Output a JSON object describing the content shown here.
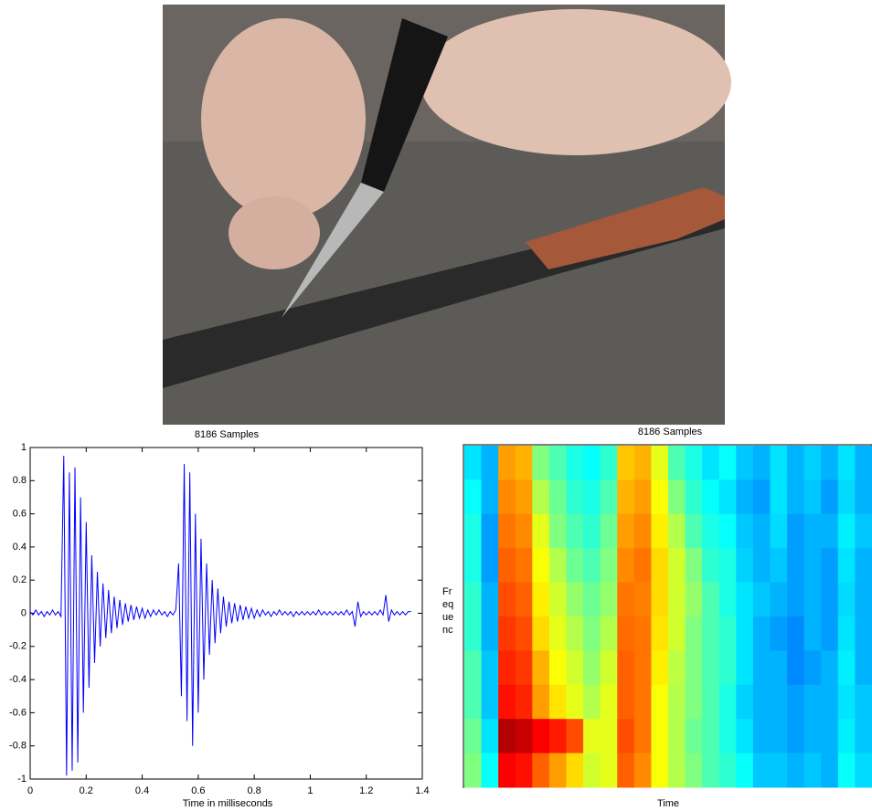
{
  "chart_data": [
    {
      "type": "line",
      "title": "8186 Samples",
      "xlabel": "Time in milliseconds",
      "xlim": [
        0,
        1.4
      ],
      "ylim": [
        -1,
        1
      ],
      "xticks": [
        0,
        0.2,
        0.4,
        0.6,
        0.8,
        1,
        1.2,
        1.4
      ],
      "yticks": [
        -1,
        -0.8,
        -0.6,
        -0.4,
        -0.2,
        0,
        0.2,
        0.4,
        0.6,
        0.8,
        1
      ],
      "color": "#0000ff",
      "x": [
        0,
        0.01,
        0.02,
        0.03,
        0.04,
        0.05,
        0.06,
        0.07,
        0.08,
        0.09,
        0.1,
        0.11,
        0.12,
        0.13,
        0.14,
        0.15,
        0.16,
        0.17,
        0.18,
        0.19,
        0.2,
        0.21,
        0.22,
        0.23,
        0.24,
        0.25,
        0.26,
        0.27,
        0.28,
        0.29,
        0.3,
        0.31,
        0.32,
        0.33,
        0.34,
        0.35,
        0.36,
        0.37,
        0.38,
        0.39,
        0.4,
        0.41,
        0.42,
        0.43,
        0.44,
        0.45,
        0.46,
        0.47,
        0.48,
        0.49,
        0.5,
        0.51,
        0.52,
        0.53,
        0.54,
        0.55,
        0.56,
        0.57,
        0.58,
        0.59,
        0.6,
        0.61,
        0.62,
        0.63,
        0.64,
        0.65,
        0.66,
        0.67,
        0.68,
        0.69,
        0.7,
        0.71,
        0.72,
        0.73,
        0.74,
        0.75,
        0.76,
        0.77,
        0.78,
        0.79,
        0.8,
        0.81,
        0.82,
        0.83,
        0.84,
        0.85,
        0.86,
        0.87,
        0.88,
        0.89,
        0.9,
        0.91,
        0.92,
        0.93,
        0.94,
        0.95,
        0.96,
        0.97,
        0.98,
        0.99,
        1,
        1.01,
        1.02,
        1.03,
        1.04,
        1.05,
        1.06,
        1.07,
        1.08,
        1.09,
        1.1,
        1.11,
        1.12,
        1.13,
        1.14,
        1.15,
        1.16,
        1.17,
        1.18,
        1.19,
        1.2,
        1.21,
        1.22,
        1.23,
        1.24,
        1.25,
        1.26,
        1.27,
        1.28,
        1.29,
        1.3,
        1.31,
        1.32,
        1.33,
        1.34,
        1.35,
        1.36
      ],
      "values": [
        0.01,
        -0.01,
        0.02,
        -0.01,
        0.01,
        -0.02,
        0.01,
        -0.01,
        0.02,
        -0.01,
        0.01,
        -0.02,
        0.95,
        -0.98,
        0.85,
        -0.95,
        0.88,
        -0.9,
        0.7,
        -0.6,
        0.55,
        -0.45,
        0.35,
        -0.3,
        0.25,
        -0.2,
        0.18,
        -0.15,
        0.14,
        -0.12,
        0.1,
        -0.09,
        0.08,
        -0.07,
        0.06,
        -0.05,
        0.05,
        -0.04,
        0.04,
        -0.03,
        0.03,
        -0.03,
        0.02,
        -0.02,
        0.02,
        -0.01,
        0.02,
        -0.01,
        0.01,
        -0.02,
        0.01,
        -0.01,
        0.02,
        0.3,
        -0.5,
        0.9,
        -0.65,
        0.85,
        -0.8,
        0.6,
        -0.6,
        0.45,
        -0.4,
        0.3,
        -0.25,
        0.2,
        -0.18,
        0.15,
        -0.12,
        0.1,
        -0.08,
        0.07,
        -0.06,
        0.06,
        -0.05,
        0.05,
        -0.04,
        0.04,
        -0.03,
        0.03,
        -0.03,
        0.02,
        -0.02,
        0.02,
        -0.01,
        0.01,
        -0.02,
        0.01,
        -0.01,
        0.02,
        -0.01,
        0.01,
        -0.01,
        0.01,
        -0.02,
        0.01,
        -0.01,
        0.01,
        -0.01,
        0.01,
        -0.01,
        0.01,
        -0.01,
        0.02,
        -0.01,
        0.01,
        -0.01,
        0.01,
        -0.01,
        0.01,
        -0.01,
        0.01,
        -0.01,
        0.02,
        -0.01,
        0.01,
        -0.08,
        0.07,
        -0.02,
        0.01,
        -0.01,
        0.01,
        -0.01,
        0.01,
        -0.01,
        0.02,
        -0.01,
        0.11,
        -0.05,
        0.02,
        -0.01,
        0.01,
        -0.01,
        0.01,
        -0.01,
        0.01,
        0.01
      ]
    },
    {
      "type": "heatmap",
      "title": "8186 Samples",
      "xlabel": "Time",
      "ylabel": [
        "Fr",
        "eq",
        "ue",
        "nc"
      ],
      "colormap": "jet",
      "z": [
        [
          0.35,
          0.3,
          0.72,
          0.7,
          0.5,
          0.45,
          0.4,
          0.38,
          0.42,
          0.68,
          0.7,
          0.6,
          0.45,
          0.4,
          0.35,
          0.38,
          0.32,
          0.3,
          0.35,
          0.3,
          0.33,
          0.3,
          0.35,
          0.3
        ],
        [
          0.38,
          0.3,
          0.74,
          0.72,
          0.55,
          0.48,
          0.42,
          0.4,
          0.45,
          0.7,
          0.72,
          0.62,
          0.5,
          0.42,
          0.38,
          0.35,
          0.3,
          0.28,
          0.35,
          0.3,
          0.32,
          0.28,
          0.34,
          0.3
        ],
        [
          0.4,
          0.28,
          0.76,
          0.74,
          0.6,
          0.5,
          0.45,
          0.42,
          0.48,
          0.72,
          0.74,
          0.64,
          0.55,
          0.45,
          0.4,
          0.38,
          0.32,
          0.3,
          0.34,
          0.28,
          0.3,
          0.3,
          0.36,
          0.32
        ],
        [
          0.4,
          0.28,
          0.78,
          0.76,
          0.62,
          0.55,
          0.48,
          0.45,
          0.5,
          0.74,
          0.76,
          0.66,
          0.58,
          0.5,
          0.42,
          0.4,
          0.33,
          0.3,
          0.32,
          0.28,
          0.3,
          0.28,
          0.35,
          0.3
        ],
        [
          0.42,
          0.3,
          0.8,
          0.78,
          0.64,
          0.58,
          0.52,
          0.48,
          0.52,
          0.76,
          0.75,
          0.66,
          0.58,
          0.52,
          0.45,
          0.4,
          0.35,
          0.32,
          0.3,
          0.28,
          0.3,
          0.28,
          0.34,
          0.3
        ],
        [
          0.42,
          0.3,
          0.82,
          0.8,
          0.66,
          0.6,
          0.55,
          0.5,
          0.55,
          0.77,
          0.76,
          0.65,
          0.58,
          0.5,
          0.45,
          0.42,
          0.35,
          0.3,
          0.28,
          0.26,
          0.3,
          0.28,
          0.35,
          0.3
        ],
        [
          0.45,
          0.32,
          0.84,
          0.82,
          0.7,
          0.62,
          0.58,
          0.52,
          0.58,
          0.78,
          0.76,
          0.64,
          0.56,
          0.5,
          0.45,
          0.42,
          0.35,
          0.3,
          0.3,
          0.26,
          0.28,
          0.3,
          0.36,
          0.3
        ],
        [
          0.45,
          0.32,
          0.86,
          0.84,
          0.72,
          0.65,
          0.6,
          0.55,
          0.6,
          0.78,
          0.76,
          0.62,
          0.55,
          0.5,
          0.45,
          0.4,
          0.33,
          0.3,
          0.3,
          0.28,
          0.3,
          0.3,
          0.35,
          0.32
        ],
        [
          0.48,
          0.35,
          0.95,
          0.93,
          0.88,
          0.85,
          0.8,
          0.6,
          0.6,
          0.8,
          0.76,
          0.62,
          0.55,
          0.48,
          0.45,
          0.4,
          0.35,
          0.3,
          0.3,
          0.28,
          0.3,
          0.3,
          0.36,
          0.32
        ],
        [
          0.5,
          0.38,
          0.88,
          0.86,
          0.78,
          0.72,
          0.66,
          0.58,
          0.6,
          0.78,
          0.74,
          0.62,
          0.55,
          0.5,
          0.45,
          0.42,
          0.38,
          0.32,
          0.32,
          0.3,
          0.32,
          0.3,
          0.38,
          0.34
        ]
      ]
    }
  ]
}
